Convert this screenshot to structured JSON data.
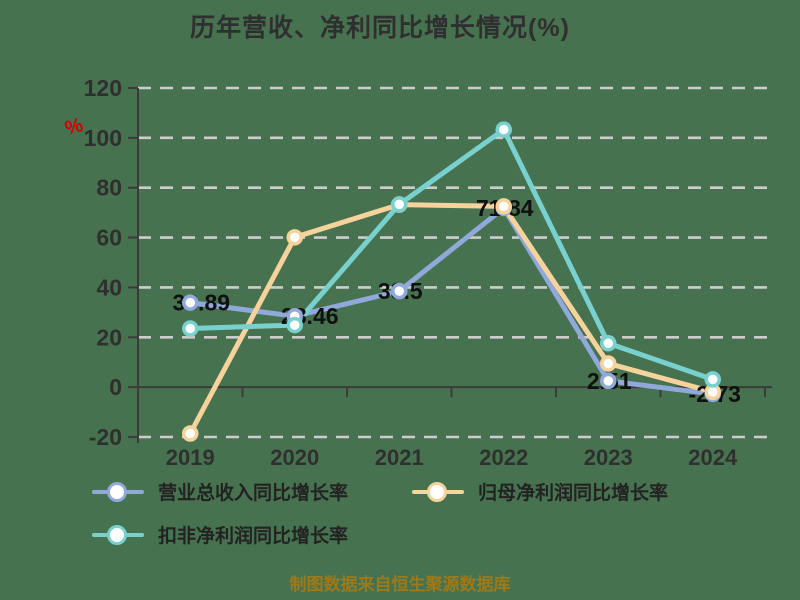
{
  "title": "历年营收、净利同比增长情况(%)",
  "unit_label": "%",
  "footer": "制图数据来自恒生聚源数据库",
  "colors": {
    "background": "#477250",
    "grid": "#cdcdcd",
    "axis": "#3b3b3b",
    "title_text": "#2f2f2f",
    "tick_text": "#2f2f2f",
    "data_label_text": "#101010",
    "unit_text": "#d50000",
    "footer_text": "#9c7a1a",
    "legend_text": "#222222",
    "marker_fill": "#ffffff"
  },
  "chart_data": {
    "type": "line",
    "categories": [
      "2019",
      "2020",
      "2021",
      "2022",
      "2023",
      "2024"
    ],
    "series": [
      {
        "name": "营业总收入同比增长率",
        "color": "#90a9da",
        "values": [
          33.89,
          28.46,
          38.5,
          71.84,
          2.51,
          -2.73
        ],
        "labeled": true
      },
      {
        "name": "归母净利润同比增长率",
        "color": "#f7d39c",
        "values": [
          -18.6,
          60.1,
          73.2,
          72.5,
          9.5,
          -1.9
        ],
        "labeled": false
      },
      {
        "name": "扣非净利润同比增长率",
        "color": "#79d1cf",
        "values": [
          23.5,
          24.9,
          73.3,
          103.3,
          17.6,
          3.1
        ],
        "labeled": false
      }
    ],
    "data_labels": [
      "33.89",
      "28.46",
      "38.5",
      "71.84",
      "2.51",
      "-2.73"
    ],
    "ylabel": "%",
    "ylim": [
      -20,
      120
    ],
    "ytick_step": 20,
    "grid": true,
    "legend_position": "bottom"
  }
}
